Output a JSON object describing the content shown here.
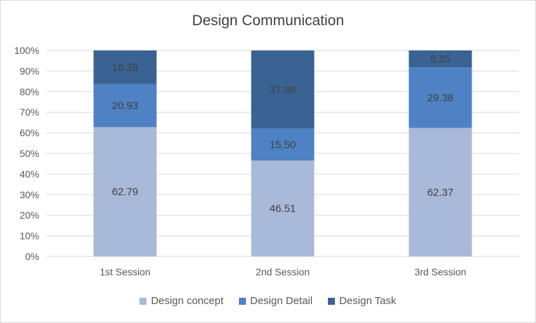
{
  "chart_data": {
    "type": "bar",
    "stacked": true,
    "percent": true,
    "title": "Design Communication",
    "xlabel": "",
    "ylabel": "",
    "categories": [
      "1st Session",
      "2nd Session",
      "3rd Session"
    ],
    "series": [
      {
        "name": "Design concept",
        "color": "#a9b9d9",
        "values": [
          62.79,
          46.51,
          62.37
        ]
      },
      {
        "name": "Design Detail",
        "color": "#4e82c4",
        "values": [
          20.93,
          15.5,
          29.38
        ]
      },
      {
        "name": "Design Task",
        "color": "#3a6394",
        "values": [
          16.28,
          37.98,
          8.25
        ]
      }
    ],
    "ylim": [
      0,
      100
    ],
    "yticks": [
      "0%",
      "10%",
      "20%",
      "30%",
      "40%",
      "50%",
      "60%",
      "70%",
      "80%",
      "90%",
      "100%"
    ],
    "value_labels": [
      [
        "62.79",
        "46.51",
        "62.37"
      ],
      [
        "20.93",
        "15.50",
        "29.38"
      ],
      [
        "16.28",
        "37.98",
        "8.25"
      ]
    ],
    "grid": true,
    "legend": "bottom"
  }
}
